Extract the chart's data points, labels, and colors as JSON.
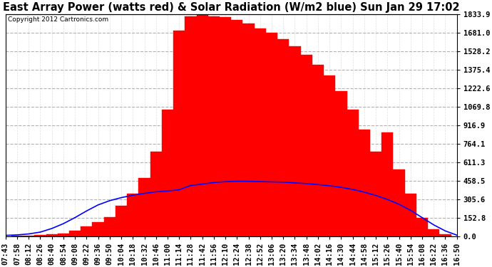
{
  "title": "East Array Power (watts red) & Solar Radiation (W/m2 blue) Sun Jan 29 17:02",
  "copyright": "Copyright 2012 Cartronics.com",
  "background_color": "#ffffff",
  "plot_bg_color": "#ffffff",
  "y_max": 1833.9,
  "y_min": 0.0,
  "y_ticks": [
    0.0,
    152.8,
    305.6,
    458.5,
    611.3,
    764.1,
    916.9,
    1069.8,
    1222.6,
    1375.4,
    1528.2,
    1681.0,
    1833.9
  ],
  "time_labels": [
    "07:43",
    "07:58",
    "08:12",
    "08:26",
    "08:40",
    "08:54",
    "09:08",
    "09:22",
    "09:36",
    "09:50",
    "10:04",
    "10:18",
    "10:32",
    "10:46",
    "11:00",
    "11:14",
    "11:28",
    "11:42",
    "11:56",
    "12:10",
    "12:24",
    "12:38",
    "12:52",
    "13:06",
    "13:20",
    "13:34",
    "13:48",
    "14:02",
    "14:16",
    "14:30",
    "14:44",
    "14:58",
    "15:12",
    "15:26",
    "15:40",
    "15:54",
    "16:08",
    "16:22",
    "16:36",
    "16:50"
  ],
  "power_data": [
    2,
    4,
    6,
    10,
    15,
    25,
    45,
    80,
    120,
    160,
    250,
    350,
    480,
    700,
    1050,
    1700,
    1820,
    1833,
    1820,
    1810,
    1790,
    1760,
    1720,
    1680,
    1630,
    1570,
    1500,
    1420,
    1330,
    1200,
    1050,
    880,
    700,
    860,
    550,
    350,
    150,
    60,
    15,
    2
  ],
  "solar_data": [
    8,
    12,
    20,
    35,
    65,
    105,
    155,
    210,
    260,
    295,
    320,
    340,
    355,
    368,
    375,
    385,
    420,
    432,
    445,
    452,
    456,
    455,
    453,
    450,
    448,
    442,
    436,
    428,
    418,
    405,
    388,
    365,
    338,
    305,
    265,
    215,
    155,
    95,
    45,
    10
  ],
  "power_color": "#ff0000",
  "solar_color": "#0000ff",
  "title_fontsize": 10.5,
  "tick_fontsize": 7.5,
  "copyright_fontsize": 6.5
}
